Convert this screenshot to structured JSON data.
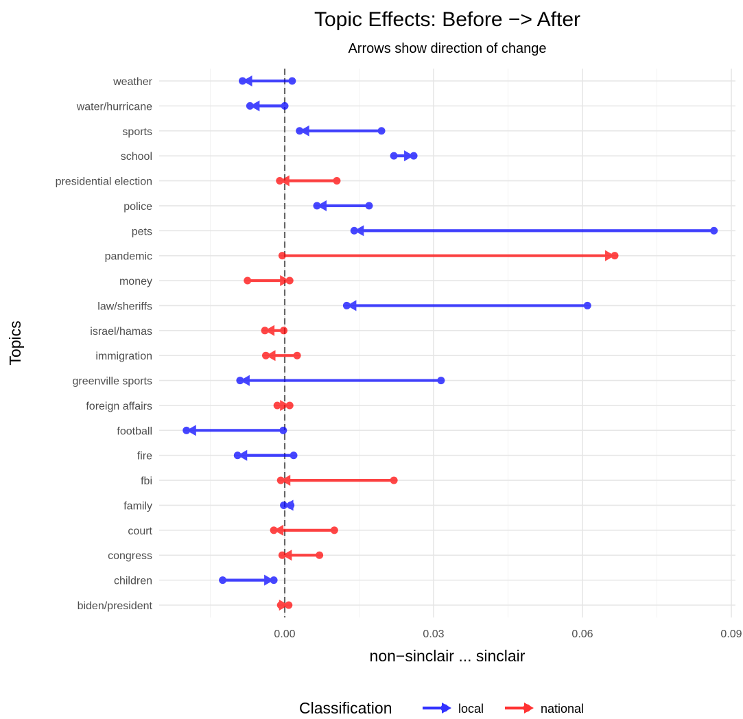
{
  "chart_data": {
    "type": "arrow-dumbbell",
    "title": "Topic Effects: Before −> After",
    "subtitle": "Arrows show direction of change",
    "xlabel": "non−sinclair ... sinclair",
    "ylabel": "Topics",
    "xlim": [
      -0.0245,
      0.0905
    ],
    "x_ticks": [
      0.0,
      0.03,
      0.06,
      0.09
    ],
    "x_tick_labels": [
      "0.00",
      "0.03",
      "0.06",
      "0.09"
    ],
    "reference_line_x": 0,
    "grid": true,
    "legend": {
      "title": "Classification",
      "position": "bottom",
      "entries": [
        {
          "label": "local",
          "color": "#0000ff"
        },
        {
          "label": "national",
          "color": "#ff0000"
        }
      ]
    },
    "colors": {
      "local": "#0000ff",
      "national": "#ff0000"
    },
    "topics": [
      {
        "topic": "weather",
        "classification": "local",
        "before": 0.0015,
        "after": -0.0085
      },
      {
        "topic": "water/hurricane",
        "classification": "local",
        "before": 0.0,
        "after": -0.007
      },
      {
        "topic": "sports",
        "classification": "local",
        "before": 0.0195,
        "after": 0.003
      },
      {
        "topic": "school",
        "classification": "local",
        "before": 0.022,
        "after": 0.026
      },
      {
        "topic": "presidential election",
        "classification": "national",
        "before": 0.0105,
        "after": -0.001
      },
      {
        "topic": "police",
        "classification": "local",
        "before": 0.017,
        "after": 0.0065
      },
      {
        "topic": "pets",
        "classification": "local",
        "before": 0.0865,
        "after": 0.014
      },
      {
        "topic": "pandemic",
        "classification": "national",
        "before": -0.0005,
        "after": 0.0665
      },
      {
        "topic": "money",
        "classification": "national",
        "before": -0.0075,
        "after": 0.001
      },
      {
        "topic": "law/sheriffs",
        "classification": "local",
        "before": 0.061,
        "after": 0.0125
      },
      {
        "topic": "israel/hamas",
        "classification": "national",
        "before": -0.0002,
        "after": -0.004
      },
      {
        "topic": "immigration",
        "classification": "national",
        "before": 0.0025,
        "after": -0.0038
      },
      {
        "topic": "greenville sports",
        "classification": "local",
        "before": 0.0315,
        "after": -0.009
      },
      {
        "topic": "foreign affairs",
        "classification": "national",
        "before": -0.0015,
        "after": 0.001
      },
      {
        "topic": "football",
        "classification": "local",
        "before": -0.0003,
        "after": -0.0198
      },
      {
        "topic": "fire",
        "classification": "local",
        "before": 0.0018,
        "after": -0.0095
      },
      {
        "topic": "fbi",
        "classification": "national",
        "before": 0.022,
        "after": -0.0008
      },
      {
        "topic": "family",
        "classification": "local",
        "before": 0.0012,
        "after": -0.0002
      },
      {
        "topic": "court",
        "classification": "national",
        "before": 0.01,
        "after": -0.0022
      },
      {
        "topic": "congress",
        "classification": "national",
        "before": 0.007,
        "after": -0.0005
      },
      {
        "topic": "children",
        "classification": "local",
        "before": -0.0125,
        "after": -0.0022
      },
      {
        "topic": "biden/president",
        "classification": "national",
        "before": -0.0008,
        "after": 0.0008
      }
    ]
  }
}
